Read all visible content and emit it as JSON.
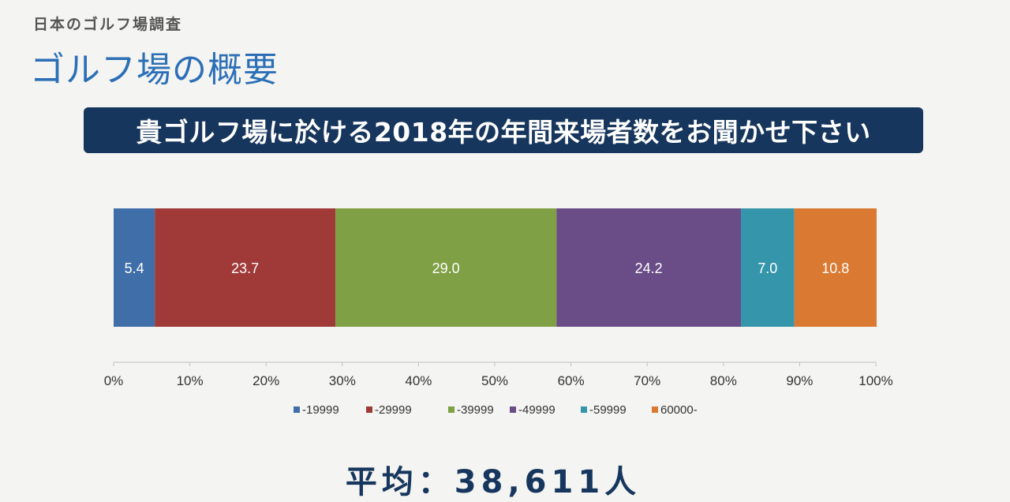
{
  "header": {
    "kicker": "日本のゴルフ場調査",
    "title": "ゴルフ場の概要"
  },
  "question": "貴ゴルフ場に於ける2018年の年間来場者数をお聞かせ下さい",
  "chart_data": {
    "type": "bar",
    "orientation": "horizontal",
    "stacked": "100%",
    "title": "",
    "xlabel": "",
    "ylabel": "",
    "xlim": [
      0,
      100
    ],
    "x_ticks": [
      "0%",
      "10%",
      "20%",
      "30%",
      "40%",
      "50%",
      "60%",
      "70%",
      "80%",
      "90%",
      "100%"
    ],
    "categories": [
      ""
    ],
    "series": [
      {
        "name": "-19999",
        "values": [
          5.4
        ],
        "label": "5.4",
        "color": "#3f6ea9"
      },
      {
        "name": "-29999",
        "values": [
          23.7
        ],
        "label": "23.7",
        "color": "#a03a38"
      },
      {
        "name": "-39999",
        "values": [
          29.0
        ],
        "label": "29.0",
        "color": "#7fa044"
      },
      {
        "name": "-49999",
        "values": [
          24.2
        ],
        "label": "24.2",
        "color": "#6a4c87"
      },
      {
        "name": "-59999",
        "values": [
          7.0
        ],
        "label": "7.0",
        "color": "#3596ab"
      },
      {
        "name": "60000-",
        "values": [
          10.8
        ],
        "label": "10.8",
        "color": "#da7a32"
      }
    ],
    "legend_position": "bottom",
    "grid": false
  },
  "footer": {
    "average": "平均：38,611人"
  }
}
